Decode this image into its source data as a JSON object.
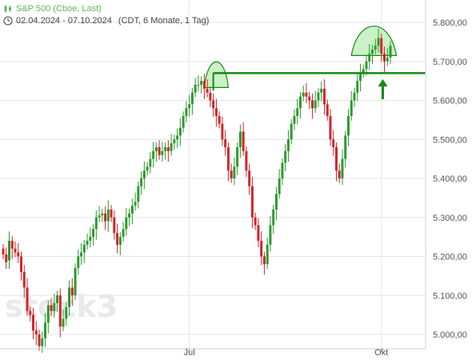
{
  "header": {
    "title": "S&P 500 (Cboe, Last)",
    "date_range": "02.04.2024 - 07.10.2024",
    "meta": "(CDT, 6 Monate, 1 Tag)",
    "title_icon": "candlestick-icon",
    "range_icon": "clock-icon"
  },
  "watermark": "stock3",
  "colors": {
    "up": "#2e9a2e",
    "down": "#d0262b",
    "resistance": "#138a13",
    "highlight": "#b9ecb4",
    "title": "#5cb85c"
  },
  "chart_data": {
    "type": "candlestick",
    "title": "S&P 500 (Cboe, Last)",
    "subtitle": "02.04.2024 - 07.10.2024",
    "y_ticks": [
      "5.000,00",
      "5.100,00",
      "5.200,00",
      "5.300,00",
      "5.400,00",
      "5.500,00",
      "5.600,00",
      "5.700,00",
      "5.800,00"
    ],
    "y_tick_values": [
      5000,
      5100,
      5200,
      5300,
      5400,
      5500,
      5600,
      5700,
      5800
    ],
    "ylim": [
      4975,
      5840
    ],
    "x_ticks": [
      {
        "label": "Jul",
        "index": 62
      },
      {
        "label": "Okt",
        "index": 126
      }
    ],
    "grid": true,
    "annotations": {
      "resistance_level": 5670,
      "resistance_start_index": 70,
      "highlight_arcs": [
        {
          "from_index": 67,
          "to_index": 75,
          "top": 5700
        },
        {
          "from_index": 116,
          "to_index": 131,
          "top": 5795
        }
      ],
      "arrow_index": 127
    },
    "close": [
      5205,
      5185,
      5240,
      5220,
      5210,
      5200,
      5160,
      5120,
      5060,
      5050,
      5010,
      5000,
      4970,
      4990,
      5030,
      5075,
      5060,
      5080,
      5100,
      5020,
      5040,
      5070,
      5120,
      5100,
      5170,
      5200,
      5210,
      5230,
      5240,
      5250,
      5270,
      5300,
      5305,
      5310,
      5290,
      5320,
      5300,
      5260,
      5230,
      5250,
      5270,
      5300,
      5310,
      5330,
      5340,
      5380,
      5400,
      5420,
      5430,
      5450,
      5470,
      5480,
      5460,
      5470,
      5480,
      5470,
      5490,
      5500,
      5510,
      5530,
      5560,
      5580,
      5590,
      5620,
      5640,
      5640,
      5650,
      5630,
      5620,
      5600,
      5580,
      5560,
      5540,
      5500,
      5480,
      5420,
      5400,
      5430,
      5480,
      5520,
      5470,
      5420,
      5380,
      5300,
      5280,
      5240,
      5200,
      5180,
      5230,
      5280,
      5320,
      5360,
      5400,
      5440,
      5470,
      5500,
      5540,
      5560,
      5580,
      5610,
      5620,
      5610,
      5600,
      5580,
      5600,
      5620,
      5630,
      5590,
      5560,
      5500,
      5480,
      5420,
      5400,
      5450,
      5510,
      5560,
      5600,
      5620,
      5650,
      5670,
      5680,
      5700,
      5720,
      5730,
      5740,
      5760,
      5720,
      5700,
      5710,
      5740
    ],
    "open": [
      5220,
      5205,
      5190,
      5240,
      5220,
      5210,
      5200,
      5160,
      5120,
      5060,
      5050,
      5010,
      5000,
      4970,
      4990,
      5030,
      5075,
      5060,
      5080,
      5100,
      5020,
      5040,
      5070,
      5120,
      5100,
      5170,
      5200,
      5210,
      5230,
      5240,
      5250,
      5270,
      5300,
      5305,
      5310,
      5290,
      5320,
      5300,
      5260,
      5230,
      5250,
      5270,
      5300,
      5310,
      5330,
      5340,
      5380,
      5400,
      5420,
      5430,
      5450,
      5470,
      5480,
      5460,
      5470,
      5480,
      5470,
      5490,
      5500,
      5510,
      5530,
      5560,
      5580,
      5590,
      5620,
      5640,
      5640,
      5650,
      5630,
      5620,
      5600,
      5580,
      5560,
      5540,
      5500,
      5480,
      5420,
      5400,
      5430,
      5480,
      5520,
      5470,
      5420,
      5380,
      5300,
      5280,
      5240,
      5200,
      5180,
      5230,
      5280,
      5320,
      5360,
      5400,
      5440,
      5470,
      5500,
      5540,
      5560,
      5580,
      5610,
      5620,
      5610,
      5600,
      5580,
      5600,
      5620,
      5630,
      5590,
      5560,
      5500,
      5480,
      5420,
      5400,
      5450,
      5510,
      5560,
      5600,
      5620,
      5650,
      5670,
      5680,
      5700,
      5720,
      5730,
      5740,
      5760,
      5720,
      5700,
      5710
    ]
  }
}
